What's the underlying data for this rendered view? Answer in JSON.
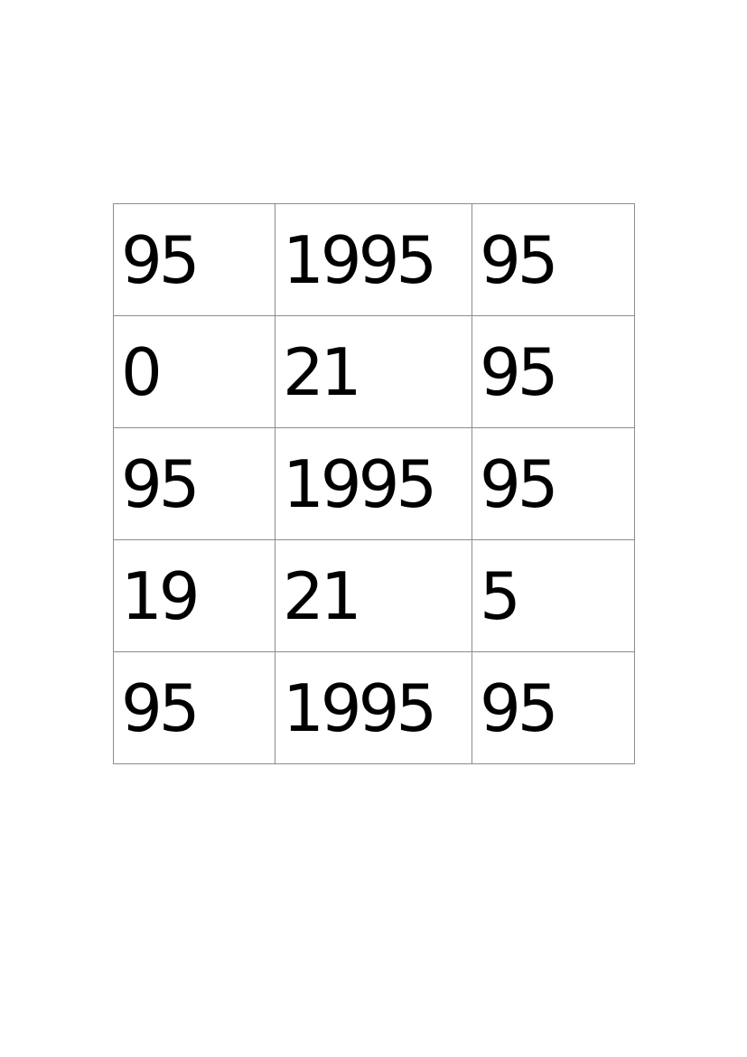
{
  "grid": {
    "rows": [
      [
        "95",
        "1995",
        "95"
      ],
      [
        "0",
        "21",
        "95"
      ],
      [
        "95",
        "1995",
        "95"
      ],
      [
        "19",
        "21",
        "5"
      ],
      [
        "95",
        "1995",
        "95"
      ]
    ]
  },
  "colors": {
    "text": "#000000",
    "border": "#8c8c8c",
    "background": "#ffffff"
  }
}
